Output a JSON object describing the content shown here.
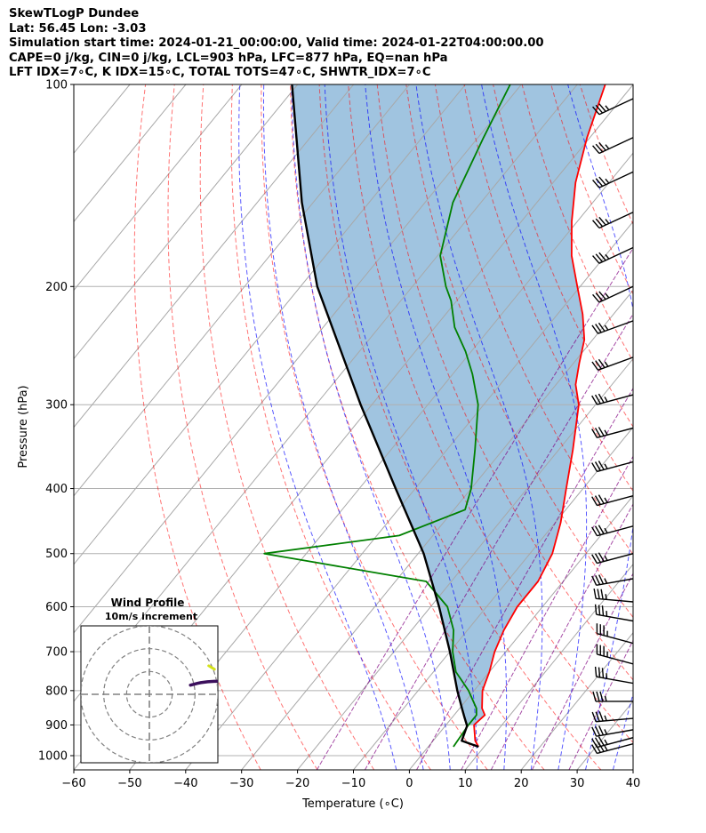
{
  "header": {
    "line1": "SkewTLogP Dundee",
    "line2": "Lat: 56.45   Lon: -3.03",
    "line3": "Simulation start time: 2024-01-21_00:00:00, Valid time: 2024-01-22T04:00:00.00",
    "line4": "CAPE=0 j/kg, CIN=0 j/kg, LCL=903 hPa, LFC=877 hPa, EQ=nan hPa",
    "line5": "LFT IDX=7∘C, K IDX=15∘C, TOTAL TOTS=47∘C, SHWTR_IDX=7∘C"
  },
  "chart_data": {
    "type": "skewt-logp",
    "xlabel": "Temperature (∘C)",
    "ylabel": "Pressure (hPa)",
    "xlim": [
      -60,
      40
    ],
    "ylim": [
      1050,
      100
    ],
    "x_ticks": [
      -60,
      -50,
      -40,
      -30,
      -20,
      -10,
      0,
      10,
      20,
      30,
      40
    ],
    "x_tick_labels": [
      "−60",
      "−50",
      "−40",
      "−30",
      "−20",
      "−10",
      "0",
      "10",
      "20",
      "30",
      "40"
    ],
    "y_ticks": [
      1000,
      900,
      800,
      700,
      600,
      500,
      400,
      300,
      200,
      100
    ],
    "y_tick_labels": [
      "1000",
      "900",
      "800",
      "700",
      "600",
      "500",
      "400",
      "300",
      "200",
      "100"
    ],
    "temperature": {
      "color": "#ff0000",
      "pressure": [
        970,
        950,
        900,
        870,
        850,
        800,
        750,
        700,
        650,
        600,
        550,
        500,
        450,
        400,
        350,
        300,
        280,
        260,
        240,
        220,
        200,
        180,
        160,
        140,
        120,
        100
      ],
      "temp": [
        9,
        7.5,
        5,
        5.5,
        4,
        1.5,
        0,
        -2,
        -3.5,
        -4.5,
        -4.5,
        -6,
        -9,
        -13,
        -17.5,
        -23,
        -26.5,
        -29,
        -31.5,
        -35.5,
        -40.5,
        -46,
        -51,
        -56,
        -60.5,
        -65
      ]
    },
    "dewpoint": {
      "color": "#008000",
      "pressure": [
        970,
        900,
        870,
        850,
        800,
        750,
        700,
        650,
        600,
        550,
        500,
        470,
        430,
        400,
        350,
        300,
        270,
        250,
        230,
        210,
        200,
        180,
        150,
        120,
        100
      ],
      "temp": [
        4.5,
        4,
        4,
        3,
        -1,
        -6,
        -9.5,
        -12.5,
        -17,
        -24.5,
        -57.5,
        -36,
        -28,
        -30,
        -35,
        -41,
        -46.5,
        -51,
        -56.5,
        -61,
        -64,
        -69.5,
        -75,
        -79,
        -82
      ]
    },
    "parcel": {
      "color": "#000000",
      "pressure": [
        970,
        950,
        903,
        877,
        850,
        800,
        700,
        600,
        500,
        400,
        300,
        200,
        150,
        100
      ],
      "temp": [
        9,
        5.1,
        3.9,
        2.2,
        0.4,
        -3,
        -10,
        -18.5,
        -29,
        -43.5,
        -62,
        -87,
        -102,
        -121
      ]
    },
    "cape_fill_color": "#a0c4e0",
    "isotherms": [
      -160,
      -150,
      -140,
      -130,
      -120,
      -110,
      -100,
      -90,
      -80,
      -70,
      -60,
      -50,
      -40,
      -30,
      -20,
      -10,
      0,
      10,
      20,
      30,
      40
    ],
    "dry_adiabats_theta_c": [
      -30,
      -20,
      -10,
      0,
      10,
      20,
      30,
      40,
      50,
      60,
      70,
      80,
      90,
      100,
      110,
      120
    ],
    "moist_adiabats_start_c": [
      -5,
      0,
      5,
      10,
      15,
      20,
      25,
      30,
      35
    ],
    "mixing_ratio_lines": [
      0.001,
      0.002,
      0.004,
      0.007,
      0.01,
      0.016,
      0.024
    ],
    "mixing_ratio_color": "#800080",
    "dry_adiabat_color": "#ff0000",
    "moist_adiabat_color": "#0000ff",
    "wind_barbs": [
      {
        "p": 960,
        "speed_kt": 35,
        "dir_deg": 255
      },
      {
        "p": 940,
        "speed_kt": 35,
        "dir_deg": 255
      },
      {
        "p": 915,
        "speed_kt": 35,
        "dir_deg": 260
      },
      {
        "p": 880,
        "speed_kt": 35,
        "dir_deg": 265
      },
      {
        "p": 830,
        "speed_kt": 35,
        "dir_deg": 270
      },
      {
        "p": 780,
        "speed_kt": 35,
        "dir_deg": 280
      },
      {
        "p": 730,
        "speed_kt": 35,
        "dir_deg": 285
      },
      {
        "p": 680,
        "speed_kt": 35,
        "dir_deg": 285
      },
      {
        "p": 630,
        "speed_kt": 35,
        "dir_deg": 280
      },
      {
        "p": 590,
        "speed_kt": 35,
        "dir_deg": 275
      },
      {
        "p": 545,
        "speed_kt": 35,
        "dir_deg": 260
      },
      {
        "p": 500,
        "speed_kt": 35,
        "dir_deg": 255
      },
      {
        "p": 455,
        "speed_kt": 35,
        "dir_deg": 255
      },
      {
        "p": 410,
        "speed_kt": 35,
        "dir_deg": 255
      },
      {
        "p": 365,
        "speed_kt": 35,
        "dir_deg": 255
      },
      {
        "p": 325,
        "speed_kt": 35,
        "dir_deg": 255
      },
      {
        "p": 290,
        "speed_kt": 35,
        "dir_deg": 255
      },
      {
        "p": 255,
        "speed_kt": 35,
        "dir_deg": 250
      },
      {
        "p": 225,
        "speed_kt": 35,
        "dir_deg": 250
      },
      {
        "p": 200,
        "speed_kt": 35,
        "dir_deg": 245
      },
      {
        "p": 175,
        "speed_kt": 35,
        "dir_deg": 245
      },
      {
        "p": 155,
        "speed_kt": 35,
        "dir_deg": 245
      },
      {
        "p": 135,
        "speed_kt": 35,
        "dir_deg": 245
      },
      {
        "p": 120,
        "speed_kt": 35,
        "dir_deg": 245
      },
      {
        "p": 105,
        "speed_kt": 35,
        "dir_deg": 245
      }
    ],
    "wind_profile_inset": {
      "title": "Wind Profile",
      "subtitle": "10m/s increment",
      "ring_speeds_ms": [
        10,
        20,
        30
      ],
      "max_ms": 30,
      "hodograph_u": [
        18,
        19.5,
        21,
        22.5,
        24,
        25.5,
        27,
        28.5,
        29.5
      ],
      "hodograph_v": [
        4,
        4.4,
        4.8,
        5.1,
        5.3,
        5.5,
        5.6,
        5.7,
        5.7
      ],
      "yellow_u": [
        26,
        28.5
      ],
      "yellow_v": [
        12.5,
        11
      ]
    }
  }
}
